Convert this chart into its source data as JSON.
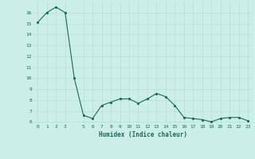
{
  "x": [
    0,
    1,
    2,
    3,
    4,
    5,
    6,
    7,
    8,
    9,
    10,
    11,
    12,
    13,
    14,
    15,
    16,
    17,
    18,
    19,
    20,
    21,
    22,
    23
  ],
  "y": [
    15.1,
    16.0,
    16.5,
    16.0,
    10.0,
    6.6,
    6.3,
    7.5,
    7.8,
    8.1,
    8.1,
    7.7,
    8.1,
    8.6,
    8.3,
    7.5,
    6.4,
    6.3,
    6.2,
    6.0,
    6.3,
    6.4,
    6.4,
    6.1
  ],
  "line_color": "#1a6b5a",
  "bg_color": "#cceee8",
  "grid_color": "#b8ddd8",
  "xlabel": "Humidex (Indice chaleur)",
  "ylim_min": 5.8,
  "ylim_max": 17.0,
  "xlim_min": -0.5,
  "xlim_max": 23.5,
  "yticks": [
    6,
    7,
    8,
    9,
    10,
    11,
    12,
    13,
    14,
    15,
    16
  ],
  "xticks": [
    0,
    1,
    2,
    3,
    5,
    6,
    7,
    8,
    9,
    10,
    11,
    12,
    13,
    14,
    15,
    16,
    17,
    18,
    19,
    20,
    21,
    22,
    23
  ]
}
